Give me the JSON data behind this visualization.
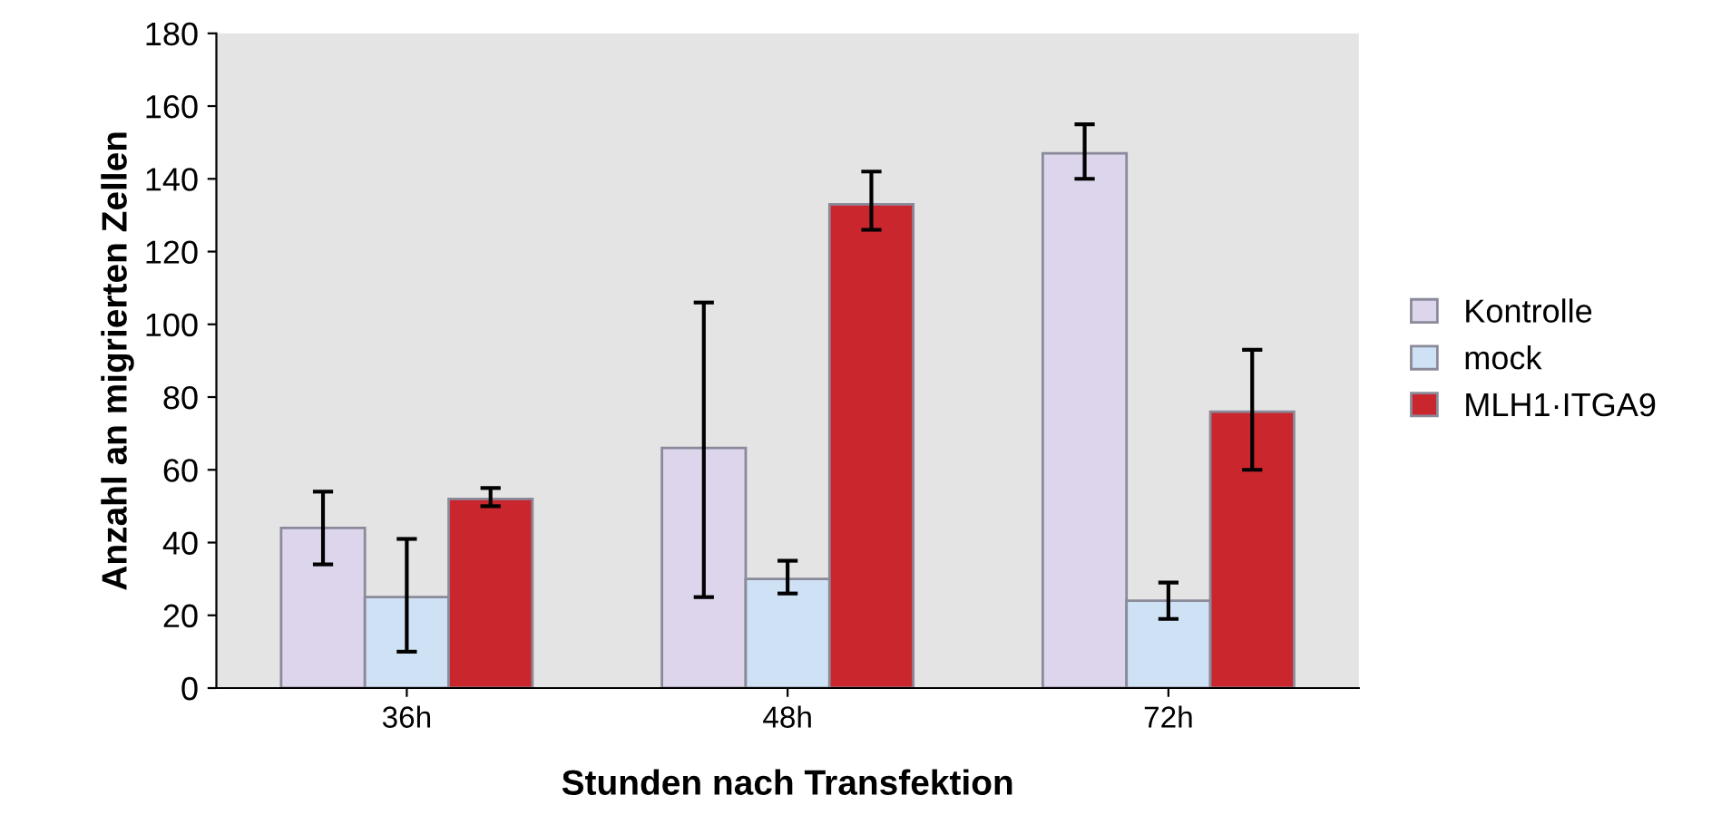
{
  "chart_data": {
    "type": "bar",
    "xlabel": "Stunden nach Transfektion",
    "ylabel": "Anzahl an migrierten Zellen",
    "categories": [
      "36h",
      "48h",
      "72h"
    ],
    "series": [
      {
        "name": "Kontrolle",
        "color": "#ddd5ec",
        "values": [
          44,
          66,
          147
        ],
        "errors": [
          [
            34,
            54
          ],
          [
            25,
            106
          ],
          [
            140,
            155
          ]
        ]
      },
      {
        "name": "mock",
        "color": "#cfe2f5",
        "values": [
          25,
          30,
          24
        ],
        "errors": [
          [
            10,
            41
          ],
          [
            26,
            35
          ],
          [
            19,
            29
          ]
        ]
      },
      {
        "name": "MLH1·ITGA9",
        "color": "#c9272d",
        "values": [
          52,
          133,
          76
        ],
        "errors": [
          [
            50,
            55
          ],
          [
            126,
            142
          ],
          [
            60,
            93
          ]
        ]
      }
    ],
    "ylim": [
      0,
      180
    ],
    "yticks": [
      0,
      20,
      40,
      60,
      80,
      100,
      120,
      140,
      160,
      180
    ],
    "grid": false,
    "legend": "right"
  }
}
